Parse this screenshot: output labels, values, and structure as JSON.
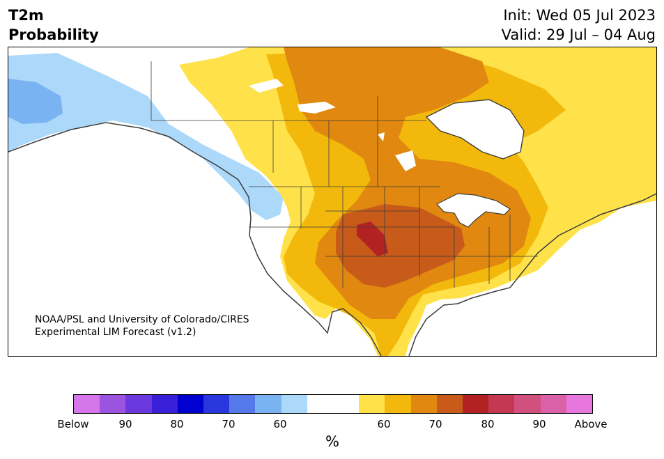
{
  "header": {
    "title_line1": "T2m",
    "title_line2": "Probability",
    "init_line": "Init: Wed 05 Jul 2023",
    "valid_line": "Valid: 29 Jul – 04 Aug"
  },
  "map": {
    "credit_line1": "NOAA/PSL and University of Colorado/CIRES",
    "credit_line2": "Experimental LIM Forecast (v1.2)",
    "region": "North America",
    "colors": {
      "above_60": "#ffe24a",
      "above_65": "#f2b90c",
      "above_70": "#e0880f",
      "above_75": "#c85a1a",
      "above_80": "#b22222",
      "below_60": "#acd8fa",
      "below_65": "#79b3f2",
      "coastline": "#3c3c3c"
    }
  },
  "colorbar": {
    "unit_label": "%",
    "tick_labels": [
      "Below",
      "90",
      "80",
      "70",
      "60",
      "60",
      "70",
      "80",
      "90",
      "Above"
    ],
    "segments": [
      "#d577e8",
      "#9b54e0",
      "#6a38dc",
      "#3a1fd8",
      "#0000d0",
      "#2838dc",
      "#5578ea",
      "#79b3f2",
      "#acd8fa",
      "#ffffff",
      "#ffffff",
      "#ffe24a",
      "#f2b90c",
      "#e0880f",
      "#c85a1a",
      "#b22222",
      "#c43854",
      "#d2507e",
      "#da60a8",
      "#e877dd"
    ]
  }
}
